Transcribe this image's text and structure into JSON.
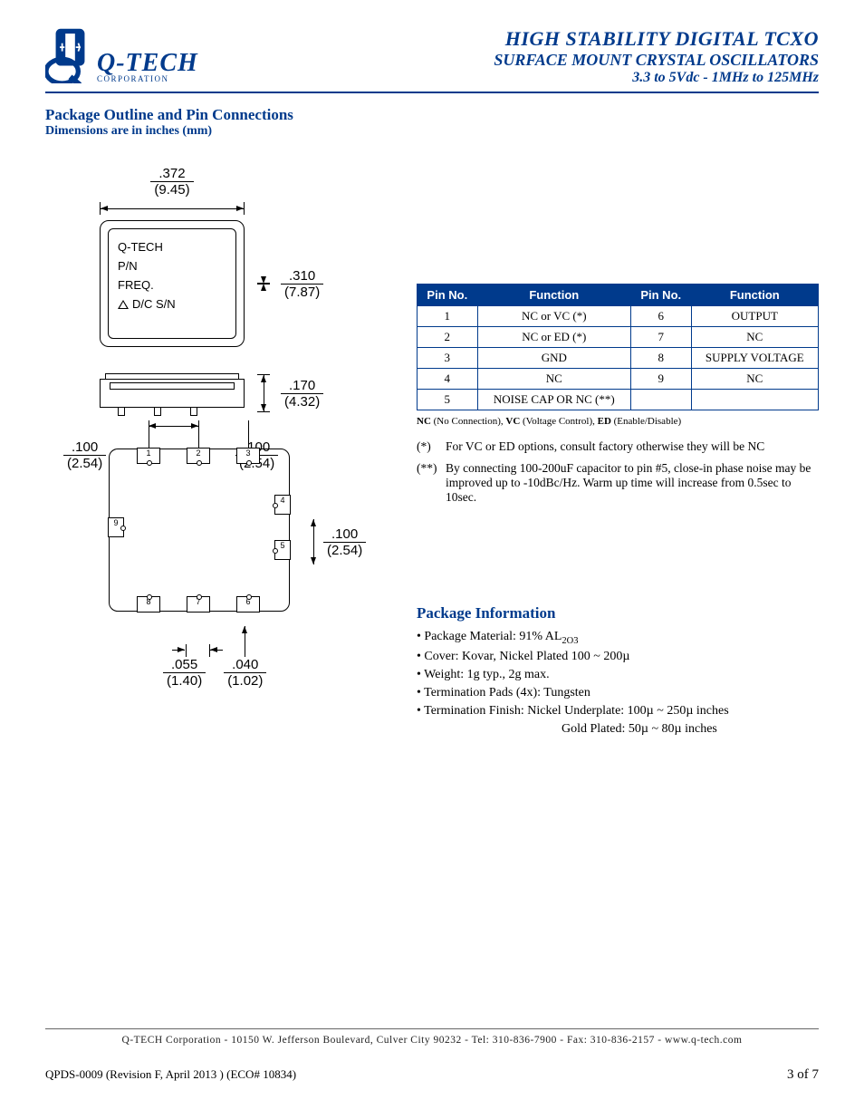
{
  "header": {
    "logo_main": "Q-TECH",
    "logo_corp": "CORPORATION",
    "title1": "HIGH STABILITY DIGITAL TCXO",
    "title2": "SURFACE MOUNT CRYSTAL OSCILLATORS",
    "title3": "3.3 to 5Vdc - 1MHz to 125MHz",
    "accent_color": "#003a8c"
  },
  "section": {
    "h1": "Package Outline and Pin Connections",
    "sub": "Dimensions are in inches (mm)"
  },
  "drawing": {
    "top_w_in": ".372",
    "top_w_mm": "(9.45)",
    "top_h_in": ".310",
    "top_h_mm": "(7.87)",
    "side_h_in": ".170",
    "side_h_mm": "(4.32)",
    "bot_pitch_in": ".100",
    "bot_pitch_mm": "(2.54)",
    "pad_w_in": ".055",
    "pad_w_mm": "(1.40)",
    "pad_gap_in": ".040",
    "pad_gap_mm": "(1.02)",
    "marking_line1": "Q-TECH",
    "marking_line2": "P/N",
    "marking_line3": "FREQ.",
    "marking_line4": "D/C  S/N"
  },
  "pin_table": {
    "headers": [
      "Pin No.",
      "Function",
      "Pin No.",
      "Function"
    ],
    "rows": [
      [
        "1",
        "NC or VC (*)",
        "6",
        "OUTPUT"
      ],
      [
        "2",
        "NC or ED (*)",
        "7",
        "NC"
      ],
      [
        "3",
        "GND",
        "8",
        "SUPPLY VOLTAGE"
      ],
      [
        "4",
        "NC",
        "9",
        "NC"
      ],
      [
        "5",
        "NOISE CAP OR NC  (**)",
        "",
        ""
      ]
    ],
    "caption_bold": "NC",
    "caption_rest": " (No Connection), ",
    "caption_bold2": "VC",
    "caption_rest2": " (Voltage Control), ",
    "caption_bold3": "ED",
    "caption_rest3": " (Enable/Disable)"
  },
  "notes": {
    "n1_ast": "(*)",
    "n1": "For VC or ED options, consult factory otherwise they will be NC",
    "n2_ast": "(**)",
    "n2": "By connecting 100-200uF capacitor to pin #5, close-in phase noise may be improved up to -10dBc/Hz.  Warm up time will increase from 0.5sec to 10sec."
  },
  "package_info": {
    "heading": "Package Information",
    "items": [
      "• Package Material: 91% AL",
      "• Cover:  Kovar, Nickel Plated 100 ~ 200µ",
      "• Weight:  1g typ., 2g max.",
      "• Termination Pads (4x): Tungsten",
      "• Termination Finish: Nickel Underplate:  100µ ~ 250µ inches"
    ],
    "item0_sub": "2O3",
    "item5_indent": "Gold Plated:  50µ ~ 80µ inches"
  },
  "footer": {
    "line": "Q-TECH Corporation  -  10150 W. Jefferson Boulevard, Culver City 90232  -  Tel: 310-836-7900  -  Fax: 310-836-2157  -  www.q-tech.com",
    "meta_left": "QPDS-0009  (Revision F, April 2013 ) (ECO# 10834)",
    "meta_right": "3 of 7"
  }
}
